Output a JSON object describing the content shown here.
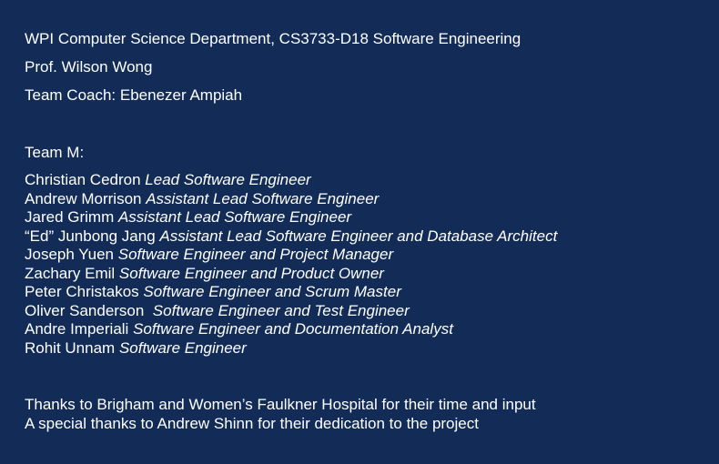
{
  "background_color": "#122c57",
  "text_color": "#ffffff",
  "header": {
    "course": "WPI Computer Science Department, CS3733-D18 Software Engineering",
    "professor": "Prof. Wilson Wong",
    "coach": "Team Coach: Ebenezer Ampiah"
  },
  "team": {
    "name": "Team M:",
    "members": [
      {
        "name": "Christian Cedron ",
        "role": "Lead Software Engineer"
      },
      {
        "name": "Andrew Morrison ",
        "role": "Assistant Lead Software Engineer"
      },
      {
        "name": "Jared Grimm ",
        "role": "Assistant Lead Software Engineer"
      },
      {
        "name": "“Ed” Junbong Jang ",
        "role": "Assistant Lead Software Engineer and Database Architect"
      },
      {
        "name": "Joseph Yuen ",
        "role": "Software Engineer and Project Manager"
      },
      {
        "name": "Zachary Emil ",
        "role": "Software Engineer and Product Owner"
      },
      {
        "name": "Peter Christakos ",
        "role": "Software Engineer and Scrum Master"
      },
      {
        "name": "Oliver Sanderson  ",
        "role": "Software Engineer and Test Engineer"
      },
      {
        "name": "Andre Imperiali ",
        "role": "Software Engineer and Documentation Analyst"
      },
      {
        "name": "Rohit Unnam ",
        "role": "Software Engineer"
      }
    ]
  },
  "acknowledgements": {
    "hospital": "Thanks to Brigham and Women’s Faulkner Hospital for their time and input",
    "special": "A special thanks to Andrew Shinn for their dedication to the project"
  }
}
